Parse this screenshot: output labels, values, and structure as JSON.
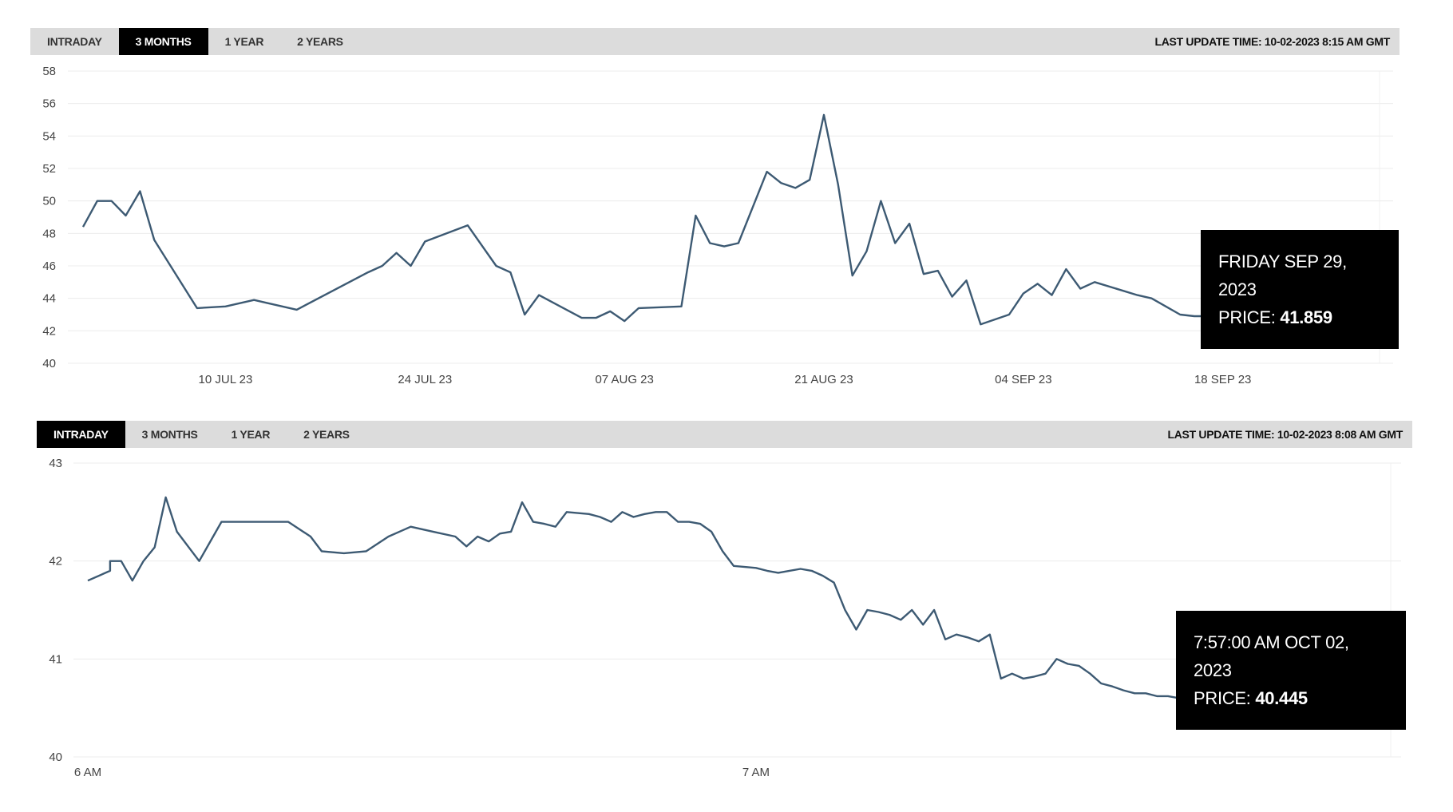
{
  "charts": [
    {
      "toolbar": {
        "tabs": [
          "INTRADAY",
          "3 MONTHS",
          "1 YEAR",
          "2 YEARS"
        ],
        "active_tab": "3 MONTHS",
        "last_update": "LAST UPDATE TIME: 10-02-2023 8:15 AM GMT"
      },
      "tooltip": {
        "date": "FRIDAY SEP 29, 2023",
        "price_label": "PRICE:",
        "price": "41.859"
      }
    },
    {
      "toolbar": {
        "tabs": [
          "INTRADAY",
          "3 MONTHS",
          "1 YEAR",
          "2 YEARS"
        ],
        "active_tab": "INTRADAY",
        "last_update": "LAST UPDATE TIME: 10-02-2023 8:08 AM GMT"
      },
      "tooltip": {
        "date": "7:57:00 AM OCT 02, 2023",
        "price_label": "PRICE:",
        "price": "40.445"
      }
    }
  ],
  "chart_data": [
    {
      "type": "line",
      "title": "",
      "xlabel": "",
      "ylabel": "",
      "ylim": [
        40,
        58
      ],
      "yticks": [
        40,
        42,
        44,
        46,
        48,
        50,
        52,
        54,
        56,
        58
      ],
      "xlim": [
        "2023-06-30",
        "2023-09-29"
      ],
      "xticks": [
        {
          "x": "2023-07-10",
          "label": "10 JUL 23"
        },
        {
          "x": "2023-07-24",
          "label": "24 JUL 23"
        },
        {
          "x": "2023-08-07",
          "label": "07 AUG 23"
        },
        {
          "x": "2023-08-21",
          "label": "21 AUG 23"
        },
        {
          "x": "2023-09-04",
          "label": "04 SEP 23"
        },
        {
          "x": "2023-09-18",
          "label": "18 SEP 23"
        }
      ],
      "grid": true,
      "line_color": "#3d5a73",
      "series": [
        {
          "x": [
            "2023-06-30",
            "2023-07-01",
            "2023-07-02",
            "2023-07-03",
            "2023-07-04",
            "2023-07-05",
            "2023-07-08",
            "2023-07-10",
            "2023-07-12",
            "2023-07-13",
            "2023-07-15",
            "2023-07-20",
            "2023-07-21",
            "2023-07-22",
            "2023-07-23",
            "2023-07-24",
            "2023-07-27",
            "2023-07-29",
            "2023-07-30",
            "2023-07-31",
            "2023-08-01",
            "2023-08-04",
            "2023-08-05",
            "2023-08-06",
            "2023-08-07",
            "2023-08-08",
            "2023-08-11",
            "2023-08-12",
            "2023-08-13",
            "2023-08-14",
            "2023-08-15",
            "2023-08-17",
            "2023-08-18",
            "2023-08-19",
            "2023-08-20",
            "2023-08-21",
            "2023-08-22",
            "2023-08-23",
            "2023-08-24",
            "2023-08-25",
            "2023-08-26",
            "2023-08-27",
            "2023-08-28",
            "2023-08-29",
            "2023-08-30",
            "2023-08-31",
            "2023-09-01",
            "2023-09-03",
            "2023-09-04",
            "2023-09-05",
            "2023-09-06",
            "2023-09-07",
            "2023-09-08",
            "2023-09-09",
            "2023-09-12",
            "2023-09-13",
            "2023-09-14",
            "2023-09-15",
            "2023-09-16",
            "2023-09-17",
            "2023-09-18",
            "2023-09-19",
            "2023-09-20",
            "2023-09-21",
            "2023-09-22",
            "2023-09-24",
            "2023-09-26",
            "2023-09-28",
            "2023-09-29"
          ],
          "y": [
            48.4,
            50.0,
            50.0,
            49.1,
            50.6,
            47.6,
            43.4,
            43.5,
            43.9,
            43.7,
            43.3,
            45.6,
            46.0,
            46.8,
            46.0,
            47.5,
            48.5,
            46.0,
            45.6,
            43.0,
            44.2,
            42.8,
            42.8,
            43.2,
            42.6,
            43.4,
            43.5,
            49.1,
            47.4,
            47.2,
            47.4,
            51.8,
            51.1,
            50.8,
            51.3,
            55.3,
            51.0,
            45.4,
            46.9,
            50.0,
            47.4,
            48.6,
            45.5,
            45.7,
            44.1,
            45.1,
            42.4,
            43.0,
            44.3,
            44.9,
            44.2,
            45.8,
            44.6,
            45.0,
            44.2,
            44.0,
            43.5,
            43.0,
            42.9,
            42.9,
            42.8,
            42.7,
            42.5,
            42.3,
            42.2,
            42.1,
            42.0,
            41.9,
            41.859
          ]
        }
      ],
      "highlight": {
        "x": "2023-09-29",
        "y": 41.859
      }
    },
    {
      "type": "line",
      "title": "",
      "xlabel": "",
      "ylabel": "",
      "ylim": [
        40,
        43
      ],
      "yticks": [
        40,
        41,
        42,
        43
      ],
      "xlim": [
        "06:00",
        "07:57"
      ],
      "xticks": [
        {
          "x": "06:00",
          "label": "6 AM"
        },
        {
          "x": "07:00",
          "label": "7 AM"
        }
      ],
      "grid": true,
      "line_color": "#3d5a73",
      "series": [
        {
          "x": [
            "06:00",
            "06:02",
            "06:02",
            "06:03",
            "06:04",
            "06:05",
            "06:06",
            "06:07",
            "06:08",
            "06:10",
            "06:12",
            "06:14",
            "06:16",
            "06:18",
            "06:20",
            "06:21",
            "06:23",
            "06:25",
            "06:27",
            "06:29",
            "06:31",
            "06:33",
            "06:34",
            "06:35",
            "06:36",
            "06:37",
            "06:38",
            "06:39",
            "06:40",
            "06:41",
            "06:42",
            "06:43",
            "06:45",
            "06:46",
            "06:47",
            "06:48",
            "06:49",
            "06:50",
            "06:51",
            "06:52",
            "06:53",
            "06:54",
            "06:55",
            "06:56",
            "06:57",
            "06:58",
            "07:00",
            "07:01",
            "07:02",
            "07:03",
            "07:04",
            "07:05",
            "07:06",
            "07:07",
            "07:08",
            "07:09",
            "07:10",
            "07:11",
            "07:12",
            "07:13",
            "07:14",
            "07:15",
            "07:16",
            "07:17",
            "07:18",
            "07:19",
            "07:20",
            "07:21",
            "07:22",
            "07:23",
            "07:24",
            "07:25",
            "07:26",
            "07:27",
            "07:28",
            "07:29",
            "07:30",
            "07:31",
            "07:32",
            "07:33",
            "07:34",
            "07:35",
            "07:36",
            "07:37",
            "07:38",
            "07:39",
            "07:40",
            "07:41",
            "07:42",
            "07:43",
            "07:44",
            "07:45",
            "07:46",
            "07:47",
            "07:48",
            "07:49",
            "07:50",
            "07:51",
            "07:52",
            "07:53",
            "07:54",
            "07:55",
            "07:56",
            "07:57"
          ],
          "y": [
            41.8,
            41.9,
            42.0,
            42.0,
            41.8,
            42.0,
            42.14,
            42.65,
            42.3,
            42.0,
            42.4,
            42.4,
            42.4,
            42.4,
            42.25,
            42.1,
            42.08,
            42.1,
            42.25,
            42.35,
            42.3,
            42.25,
            42.15,
            42.25,
            42.2,
            42.28,
            42.3,
            42.6,
            42.4,
            42.38,
            42.35,
            42.5,
            42.48,
            42.45,
            42.4,
            42.5,
            42.45,
            42.48,
            42.5,
            42.5,
            42.4,
            42.4,
            42.38,
            42.3,
            42.1,
            41.95,
            41.93,
            41.9,
            41.88,
            41.9,
            41.92,
            41.9,
            41.85,
            41.78,
            41.5,
            41.3,
            41.5,
            41.48,
            41.45,
            41.4,
            41.5,
            41.35,
            41.5,
            41.2,
            41.25,
            41.22,
            41.18,
            41.25,
            40.8,
            40.85,
            40.8,
            40.82,
            40.85,
            41.0,
            40.95,
            40.93,
            40.85,
            40.75,
            40.72,
            40.68,
            40.65,
            40.65,
            40.62,
            40.62,
            40.6,
            40.62,
            40.58,
            40.55,
            40.52,
            40.48,
            40.5,
            40.46,
            40.48,
            40.5,
            40.48,
            40.45,
            40.48,
            40.46,
            40.47,
            40.5,
            40.45,
            40.44,
            40.46,
            40.445
          ]
        }
      ],
      "highlight": {
        "x": "07:57",
        "y": 40.445
      }
    }
  ]
}
